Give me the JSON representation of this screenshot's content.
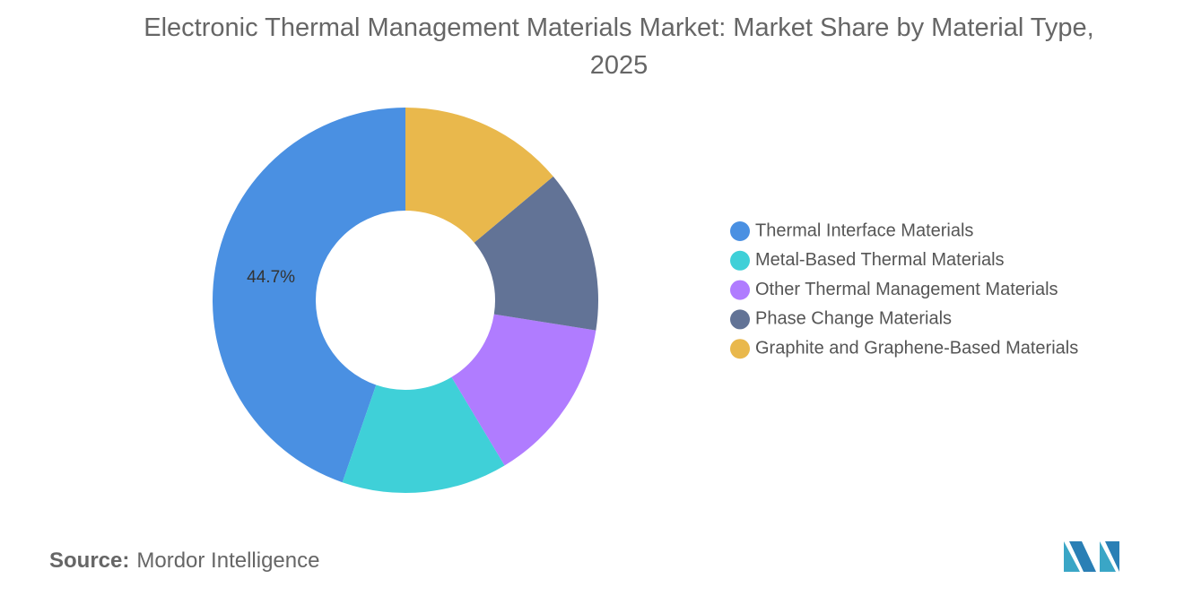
{
  "chart_data": {
    "type": "donut",
    "title": "Electronic Thermal Management Materials Market: Market Share by Material Type, 2025",
    "categories": [
      "Thermal Interface Materials",
      "Metal-Based Thermal Materials",
      "Other Thermal Management Materials",
      "Phase Change Materials",
      "Graphite and Graphene-Based Materials"
    ],
    "values": [
      44.7,
      13.9,
      13.9,
      13.6,
      13.9
    ],
    "value_labels": [
      "44.7%",
      null,
      null,
      null,
      null
    ],
    "colors": [
      "#4a90e2",
      "#3fd0d8",
      "#b07cff",
      "#627396",
      "#e9b84c"
    ],
    "legend": "right"
  },
  "source": {
    "label": "Source:",
    "text": "Mordor Intelligence"
  }
}
